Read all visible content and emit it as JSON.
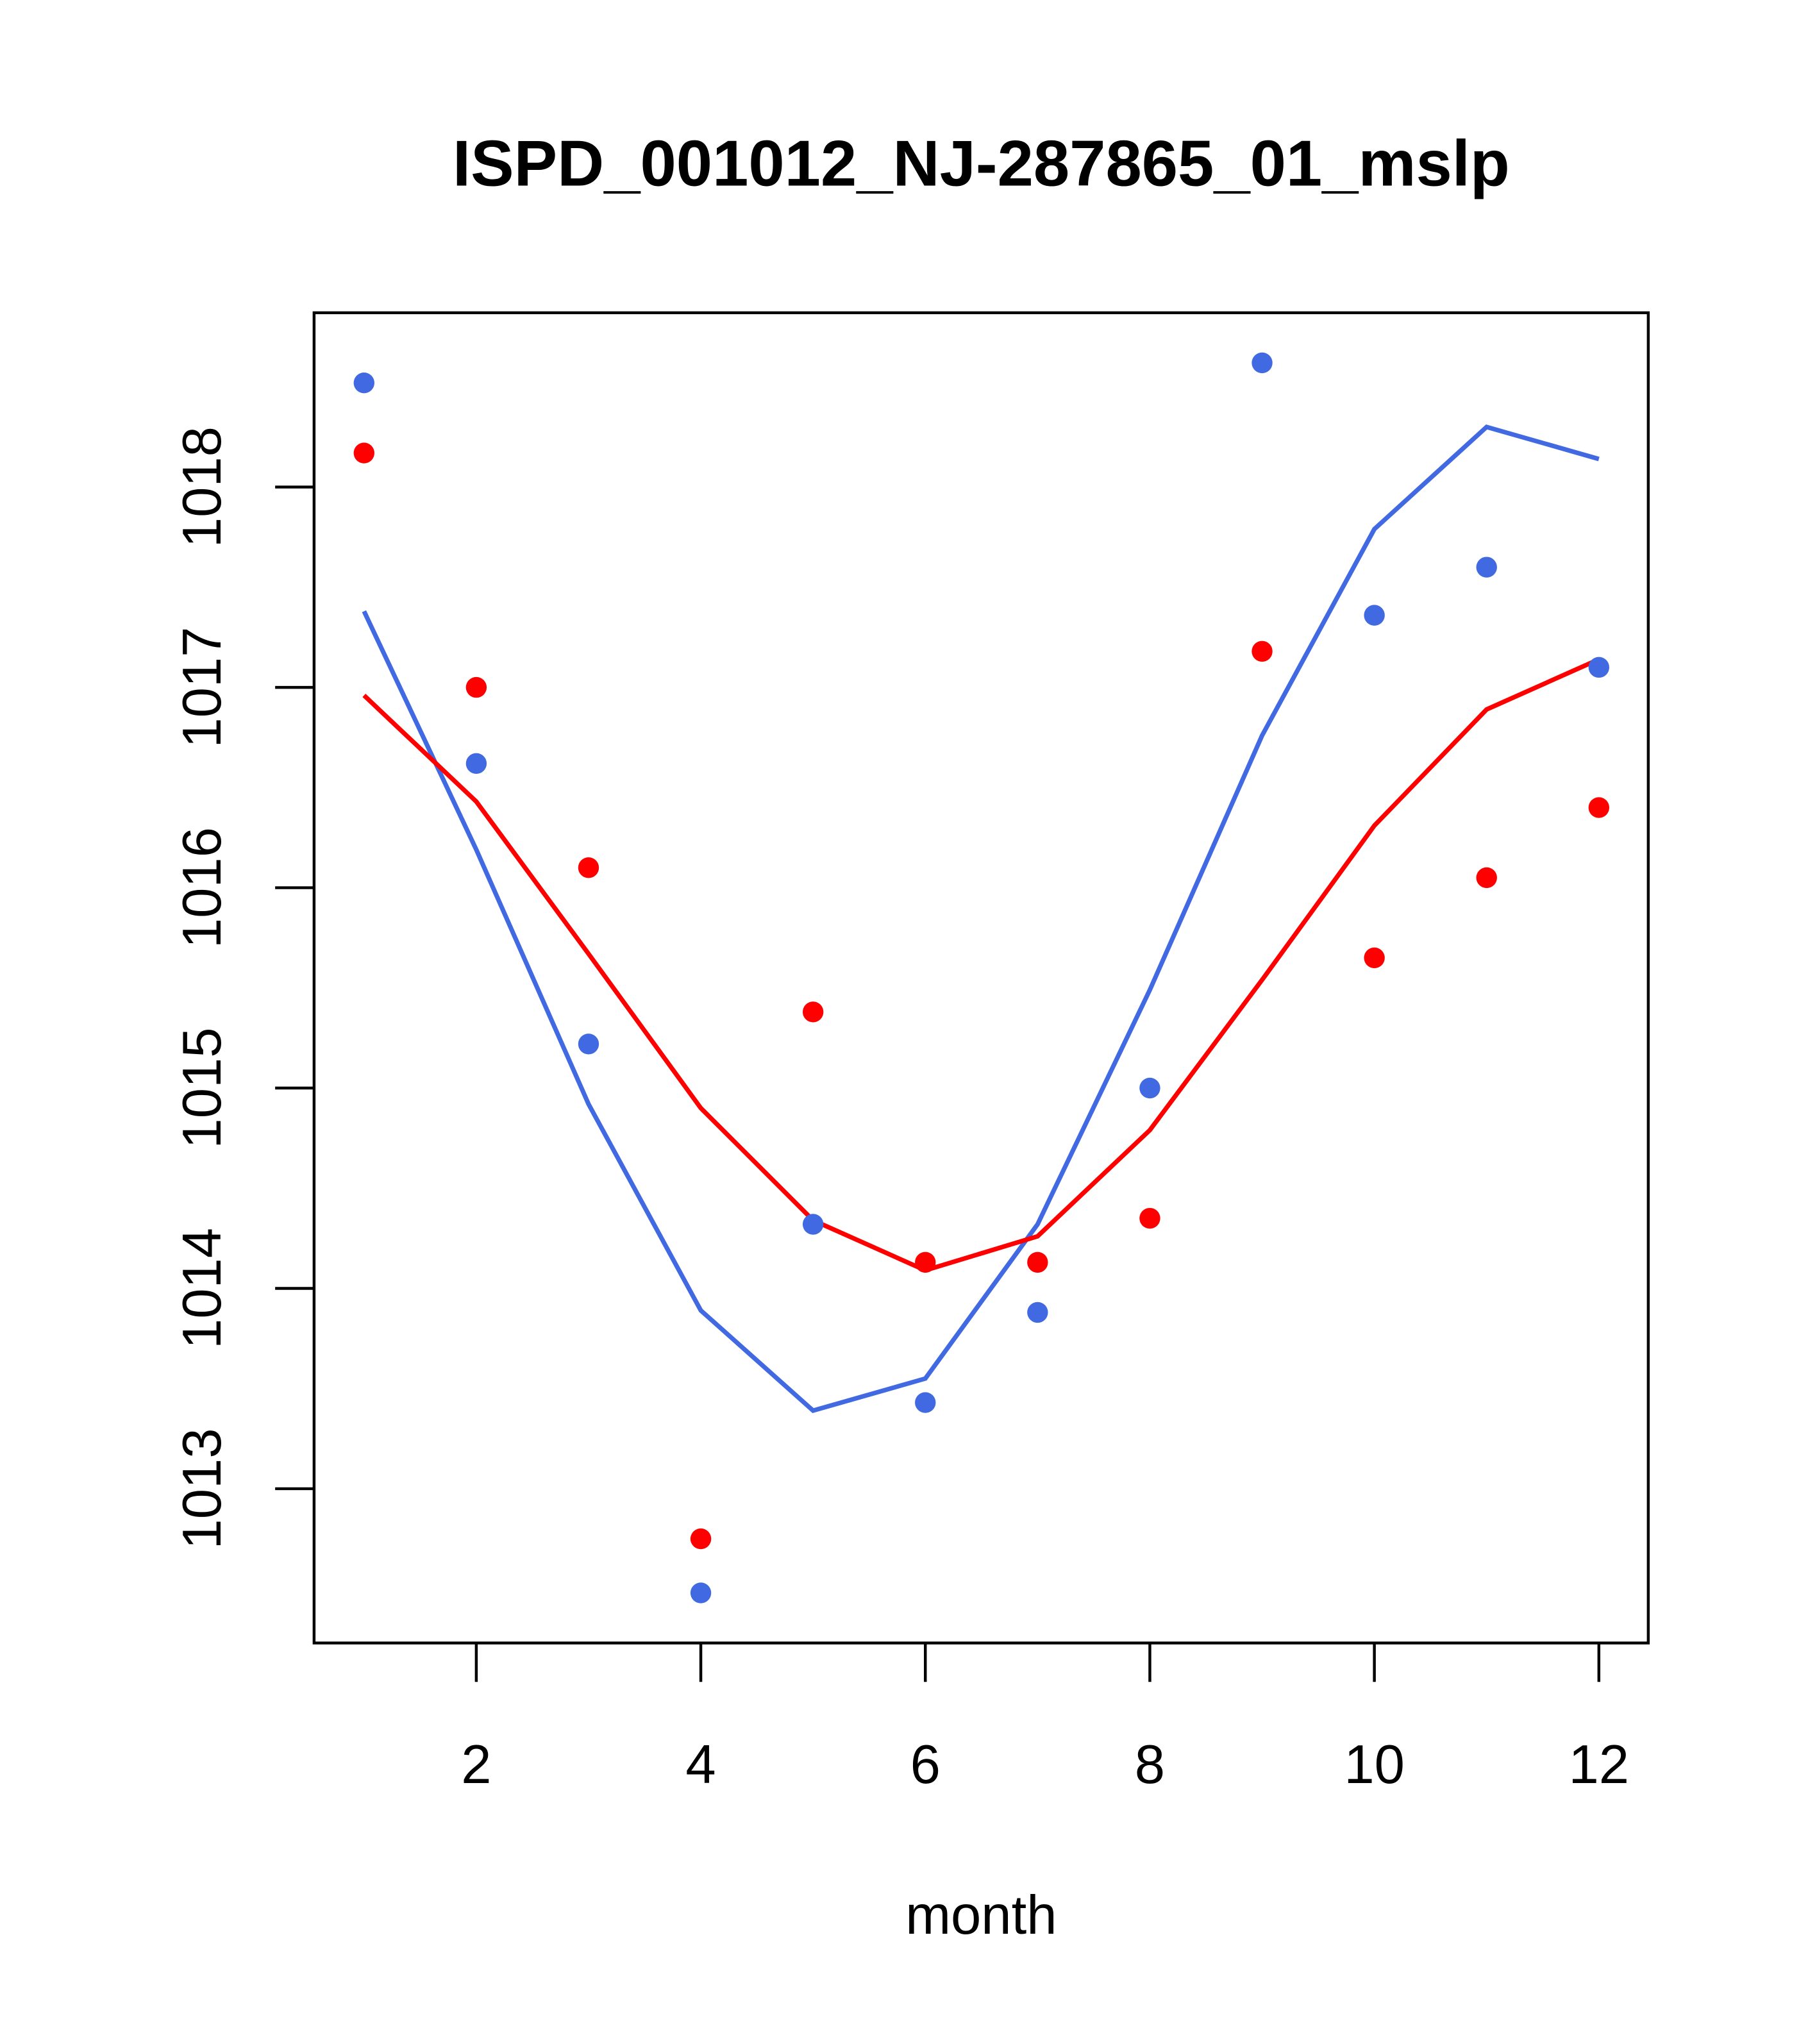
{
  "chart_data": {
    "type": "line",
    "title": "ISPD_001012_NJ-287865_01_mslp",
    "xlabel": "month",
    "ylabel": "",
    "xlim": [
      0.555,
      12.44
    ],
    "ylim": [
      1012.23,
      1018.87
    ],
    "x_ticks": [
      2,
      4,
      6,
      8,
      10,
      12
    ],
    "x_tick_labels": [
      "2",
      "4",
      "6",
      "8",
      "10",
      "12"
    ],
    "y_ticks": [
      1013,
      1014,
      1015,
      1016,
      1017,
      1018
    ],
    "y_tick_labels": [
      "1013",
      "1014",
      "1015",
      "1016",
      "1017",
      "1018"
    ],
    "grid": false,
    "x": [
      1,
      2,
      3,
      4,
      5,
      6,
      7,
      8,
      9,
      10,
      11,
      12
    ],
    "series": [
      {
        "name": "blue points",
        "kind": "points",
        "color": "#4169e1",
        "values": [
          1018.52,
          1016.62,
          1015.22,
          1012.48,
          1014.32,
          1013.43,
          1013.88,
          1015.0,
          1018.62,
          1017.36,
          1017.6,
          1017.1
        ]
      },
      {
        "name": "red points",
        "kind": "points",
        "color": "#ff0000",
        "values": [
          1018.17,
          1017.0,
          1016.1,
          1012.75,
          1015.38,
          1014.13,
          1014.13,
          1014.35,
          1017.18,
          1015.65,
          1016.05,
          1016.4
        ]
      },
      {
        "name": "blue line",
        "kind": "line",
        "color": "#4169e1",
        "values": [
          1017.38,
          1016.19,
          1014.92,
          1013.89,
          1013.39,
          1013.55,
          1014.32,
          1015.49,
          1016.76,
          1017.79,
          1018.3,
          1018.14
        ]
      },
      {
        "name": "red line",
        "kind": "line",
        "color": "#ff0000",
        "values": [
          1016.96,
          1016.43,
          1015.67,
          1014.9,
          1014.34,
          1014.09,
          1014.26,
          1014.79,
          1015.54,
          1016.31,
          1016.89,
          1017.14
        ]
      }
    ]
  }
}
